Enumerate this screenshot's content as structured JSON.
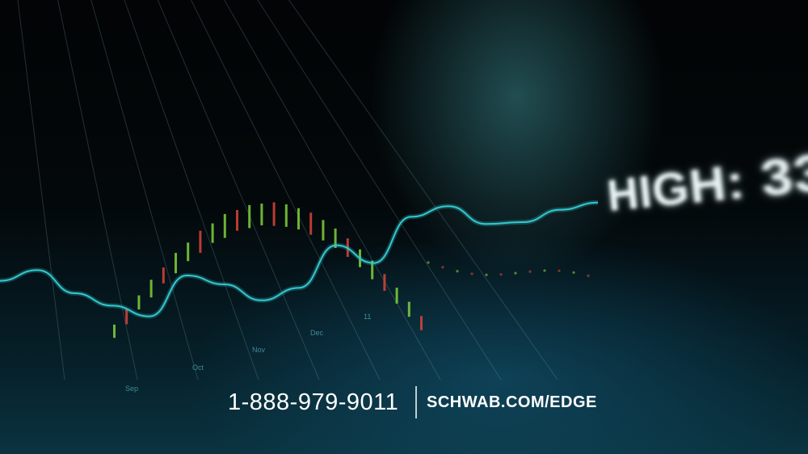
{
  "headline": "HIGH: 33",
  "contact": {
    "phone": "1-888-979-9011",
    "website": "SCHWAB.COM/EDGE"
  },
  "chart_data": {
    "type": "line",
    "x_ticks": [
      "Sep",
      "Oct",
      "Nov",
      "Dec",
      "11"
    ],
    "series": [
      {
        "values": [
          0.42,
          0.48,
          0.35,
          0.28,
          0.22,
          0.45,
          0.4,
          0.31,
          0.38,
          0.62,
          0.52,
          0.78,
          0.84,
          0.74,
          0.75,
          0.82,
          0.86
        ]
      }
    ],
    "bars": [
      0.2,
      0.3,
      0.25,
      0.45,
      0.35,
      0.6,
      0.5,
      0.7,
      0.55,
      0.8,
      0.62,
      0.75,
      0.68,
      0.78,
      0.72,
      0.65,
      0.7,
      0.6,
      0.55,
      0.5,
      0.45,
      0.5,
      0.4,
      0.35,
      0.3,
      0.25
    ],
    "colors": {
      "up": "#7fd23b",
      "down": "#d9453a",
      "line": "#33c9cf"
    }
  }
}
